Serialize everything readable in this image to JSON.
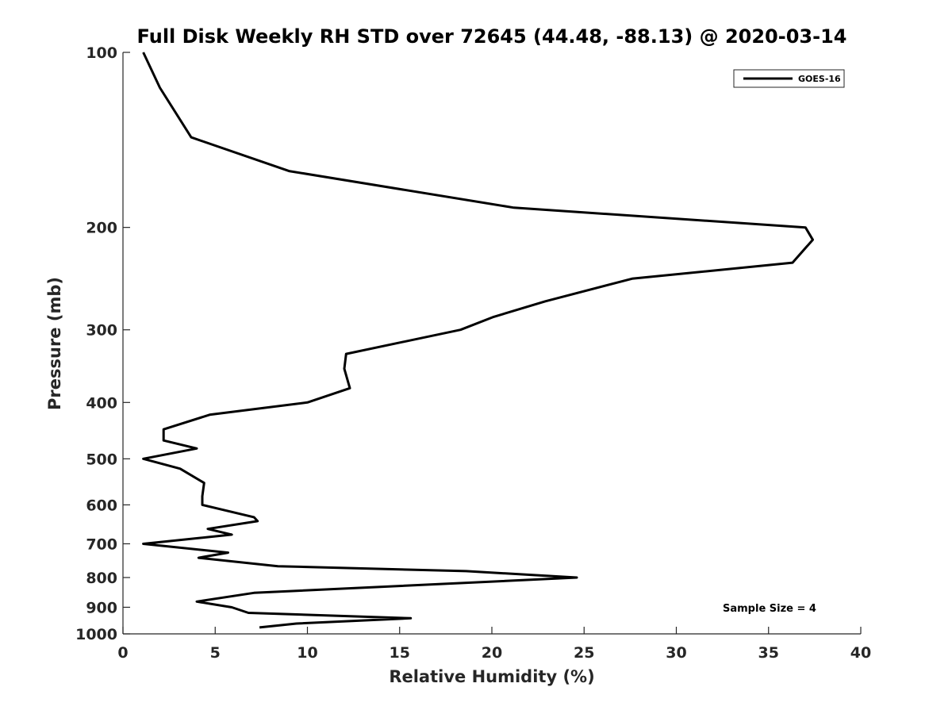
{
  "chart_data": {
    "type": "line",
    "title": "Full Disk Weekly RH STD over 72645 (44.48, -88.13) @ 2020-03-14",
    "xlabel": "Relative Humidity (%)",
    "ylabel": "Pressure (mb)",
    "xlim": [
      0,
      40
    ],
    "ylim": [
      100,
      1000
    ],
    "yscale": "log",
    "y_reversed": true,
    "x_ticks": [
      0,
      5,
      10,
      15,
      20,
      25,
      30,
      35,
      40
    ],
    "x_tick_labels": [
      "0",
      "5",
      "10",
      "15",
      "20",
      "25",
      "30",
      "35",
      "40"
    ],
    "y_ticks": [
      100,
      200,
      300,
      400,
      500,
      600,
      700,
      800,
      900,
      1000
    ],
    "y_tick_labels": [
      "100",
      "200",
      "300",
      "400",
      "500",
      "600",
      "700",
      "800",
      "900",
      "1000"
    ],
    "grid": false,
    "legend_position": "top-right",
    "series": [
      {
        "name": "GOES-16",
        "color": "#000000",
        "x": [
          1.1,
          2.0,
          3.7,
          9.0,
          21.2,
          37.0,
          37.4,
          36.3,
          27.6,
          22.9,
          20.1,
          18.3,
          12.1,
          12.0,
          12.3,
          10.0,
          4.7,
          2.2,
          2.2,
          4.0,
          1.1,
          3.1,
          4.4,
          4.3,
          4.3,
          7.1,
          7.3,
          4.6,
          5.9,
          1.1,
          5.7,
          4.1,
          8.4,
          18.6,
          24.6,
          7.1,
          4.0,
          5.9,
          6.8,
          15.6,
          9.4,
          7.4
        ],
        "y": [
          100,
          115,
          140,
          160,
          185,
          200,
          210,
          230,
          245,
          268,
          285,
          300,
          330,
          350,
          378,
          400,
          420,
          445,
          465,
          480,
          500,
          520,
          550,
          580,
          600,
          630,
          640,
          660,
          675,
          700,
          725,
          740,
          765,
          780,
          800,
          850,
          880,
          900,
          920,
          940,
          960,
          975
        ]
      }
    ],
    "annotations": [
      {
        "text": "Sample Size = 4",
        "position": "bottom-right"
      }
    ]
  }
}
